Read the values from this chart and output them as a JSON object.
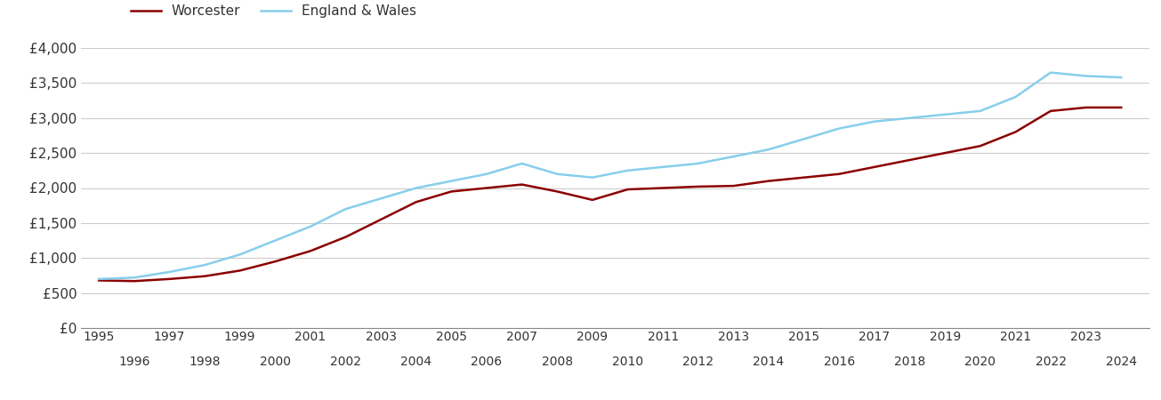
{
  "years": [
    1995,
    1996,
    1997,
    1998,
    1999,
    2000,
    2001,
    2002,
    2003,
    2004,
    2005,
    2006,
    2007,
    2008,
    2009,
    2010,
    2011,
    2012,
    2013,
    2014,
    2015,
    2016,
    2017,
    2018,
    2019,
    2020,
    2021,
    2022,
    2023,
    2024
  ],
  "worcester": [
    680,
    670,
    700,
    740,
    820,
    950,
    1100,
    1300,
    1550,
    1800,
    1950,
    2000,
    2050,
    1950,
    1830,
    1980,
    2000,
    2020,
    2030,
    2100,
    2150,
    2200,
    2300,
    2400,
    2500,
    2600,
    2800,
    3100,
    3150,
    3150
  ],
  "england_wales": [
    700,
    720,
    800,
    900,
    1050,
    1250,
    1450,
    1700,
    1850,
    2000,
    2100,
    2200,
    2350,
    2200,
    2150,
    2250,
    2300,
    2350,
    2450,
    2550,
    2700,
    2850,
    2950,
    3000,
    3050,
    3100,
    3300,
    3650,
    3600,
    3580
  ],
  "worcester_color": "#8B0000",
  "england_wales_color": "#87CEEB",
  "background_color": "#ffffff",
  "grid_color": "#cccccc",
  "ylim": [
    0,
    4000
  ],
  "yticks": [
    0,
    500,
    1000,
    1500,
    2000,
    2500,
    3000,
    3500,
    4000
  ],
  "ytick_labels": [
    "£0",
    "£500",
    "£1,000",
    "£1,500",
    "£2,000",
    "£2,500",
    "£3,000",
    "£3,500",
    "£4,000"
  ],
  "xticks_odd": [
    1995,
    1997,
    1999,
    2001,
    2003,
    2005,
    2007,
    2009,
    2011,
    2013,
    2015,
    2017,
    2019,
    2021,
    2023
  ],
  "xticks_even": [
    1996,
    1998,
    2000,
    2002,
    2004,
    2006,
    2008,
    2010,
    2012,
    2014,
    2016,
    2018,
    2020,
    2022,
    2024
  ],
  "legend_worcester": "Worcester",
  "legend_england_wales": "England & Wales",
  "line_width": 1.8,
  "xlim_left": 1994.5,
  "xlim_right": 2024.8
}
